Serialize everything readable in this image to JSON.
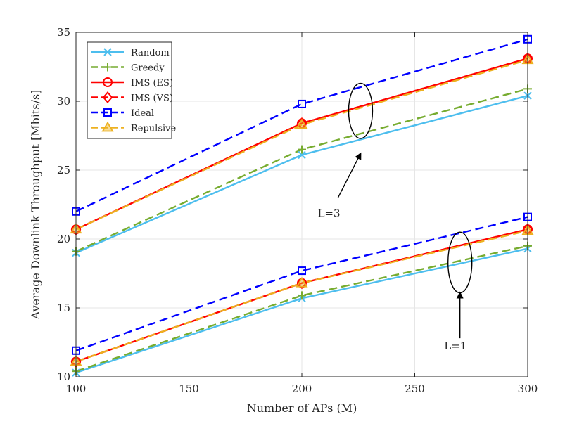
{
  "chart_data": {
    "type": "line",
    "title": "",
    "xlabel": "Number of APs (M)",
    "ylabel": "Average Downlink Throughput [Mbits/s]",
    "xlim": [
      100,
      300
    ],
    "ylim": [
      10,
      35
    ],
    "xticks": [
      100,
      150,
      200,
      250,
      300
    ],
    "yticks": [
      10,
      15,
      20,
      25,
      30,
      35
    ],
    "xtick_labels": [
      "100",
      "150",
      "200",
      "250",
      "300"
    ],
    "ytick_labels": [
      "10",
      "15",
      "20",
      "25",
      "30",
      "35"
    ],
    "grid": true,
    "legend_position": "top-left",
    "x": [
      100,
      200,
      300
    ],
    "series": [
      {
        "name": "Random",
        "group": "L=3",
        "color": "#4DBEEE",
        "dash": "solid",
        "marker": "x",
        "values": [
          19.0,
          26.1,
          30.4
        ]
      },
      {
        "name": "Greedy",
        "group": "L=3",
        "color": "#77AC30",
        "dash": "dashed",
        "marker": "plus",
        "values": [
          19.1,
          26.5,
          30.9
        ]
      },
      {
        "name": "IMS (ES)",
        "group": "L=3",
        "color": "#FF0000",
        "dash": "solid",
        "marker": "circle",
        "values": [
          20.7,
          28.4,
          33.1
        ]
      },
      {
        "name": "IMS (VS)",
        "group": "L=3",
        "color": "#FF0000",
        "dash": "dashed",
        "marker": "diamond",
        "values": [
          20.7,
          28.4,
          33.1
        ]
      },
      {
        "name": "Ideal",
        "group": "L=3",
        "color": "#0000FF",
        "dash": "dashed",
        "marker": "square",
        "values": [
          22.0,
          29.8,
          34.5
        ]
      },
      {
        "name": "Repulsive",
        "group": "L=3",
        "color": "#EDB120",
        "dash": "dashed",
        "marker": "triangle",
        "values": [
          20.7,
          28.3,
          33.0
        ]
      },
      {
        "name": "Random",
        "group": "L=1",
        "color": "#4DBEEE",
        "dash": "solid",
        "marker": "x",
        "values": [
          10.3,
          15.7,
          19.3
        ]
      },
      {
        "name": "Greedy",
        "group": "L=1",
        "color": "#77AC30",
        "dash": "dashed",
        "marker": "plus",
        "values": [
          10.4,
          15.9,
          19.5
        ]
      },
      {
        "name": "IMS (ES)",
        "group": "L=1",
        "color": "#FF0000",
        "dash": "solid",
        "marker": "circle",
        "values": [
          11.1,
          16.8,
          20.7
        ]
      },
      {
        "name": "IMS (VS)",
        "group": "L=1",
        "color": "#FF0000",
        "dash": "dashed",
        "marker": "diamond",
        "values": [
          11.1,
          16.8,
          20.7
        ]
      },
      {
        "name": "Ideal",
        "group": "L=1",
        "color": "#0000FF",
        "dash": "dashed",
        "marker": "square",
        "values": [
          11.9,
          17.7,
          21.6
        ]
      },
      {
        "name": "Repulsive",
        "group": "L=1",
        "color": "#EDB120",
        "dash": "dashed",
        "marker": "triangle",
        "values": [
          11.1,
          16.8,
          20.6
        ]
      }
    ],
    "annotations": [
      {
        "text": "L=3",
        "ellipse_center": [
          226,
          29.3
        ],
        "ellipse_half_width": 5.3,
        "ellipse_half_height": 2.0,
        "arrow_tail": [
          216,
          23.0
        ],
        "arrow_head": [
          226,
          26.2
        ],
        "label_at": [
          212,
          21.6
        ]
      },
      {
        "text": "L=1",
        "ellipse_center": [
          270,
          18.3
        ],
        "ellipse_half_width": 5.3,
        "ellipse_half_height": 2.2,
        "arrow_tail": [
          270,
          12.8
        ],
        "arrow_head": [
          270,
          16.1
        ],
        "label_at": [
          268,
          12.0
        ]
      }
    ]
  }
}
